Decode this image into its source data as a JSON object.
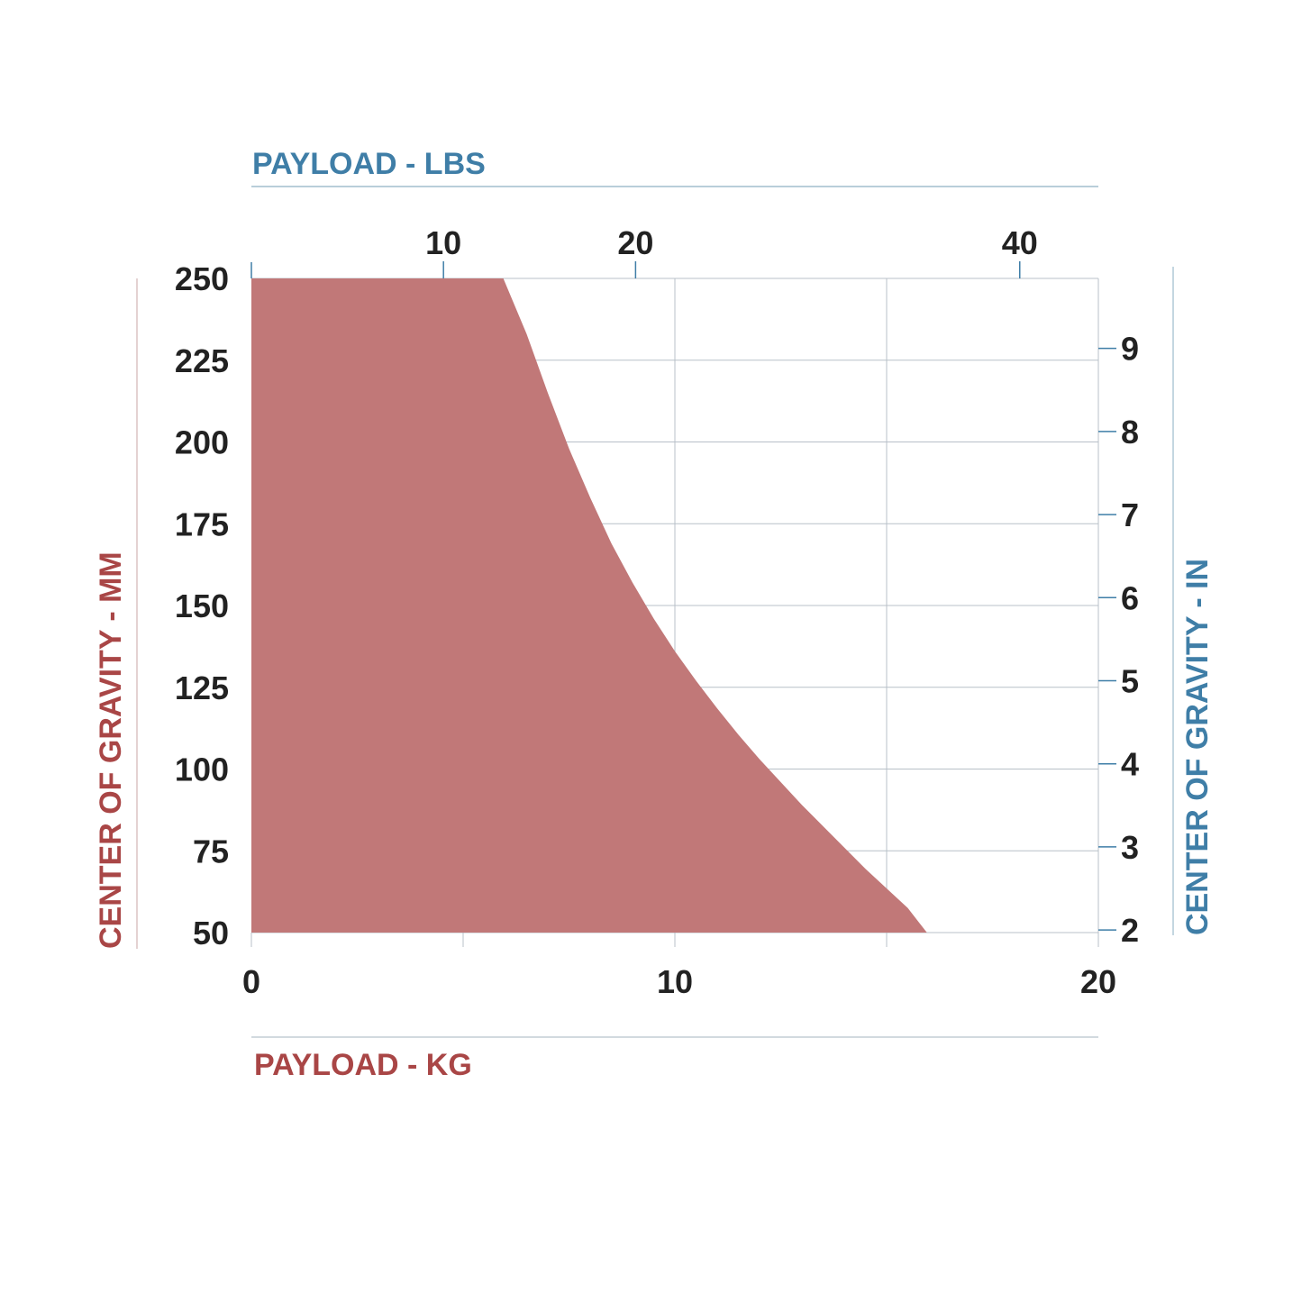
{
  "chart_data": {
    "type": "area",
    "title": "",
    "xlabel": "PAYLOAD - KG",
    "x2label": "PAYLOAD - LBS",
    "ylabel": "CENTER OF GRAVITY - MM",
    "y2label": "CENTER OF GRAVITY - IN",
    "xlim": [
      0,
      20
    ],
    "ylim": [
      50,
      250
    ],
    "x_ticks": [
      0,
      10,
      20
    ],
    "x_gridlines": [
      5,
      10,
      15
    ],
    "y_ticks": [
      50,
      75,
      100,
      125,
      150,
      175,
      200,
      225,
      250
    ],
    "x2_ticks": [
      10,
      20,
      40
    ],
    "y2_ticks": [
      2,
      3,
      4,
      5,
      6,
      7,
      8,
      9
    ],
    "grid": true,
    "series": [
      {
        "x": [
          0,
          5.95,
          6.5,
          7.0,
          7.5,
          8.0,
          8.5,
          9.0,
          9.5,
          10.0,
          10.5,
          11.0,
          11.5,
          12.0,
          12.5,
          13.0,
          13.5,
          14.0,
          14.5,
          15.0,
          15.5,
          15.95,
          0
        ],
        "y": [
          250,
          250,
          233,
          215,
          198,
          183,
          169,
          157,
          146,
          136,
          127,
          118.5,
          110.5,
          103,
          96,
          89,
          82.5,
          76,
          69.5,
          63.5,
          57.5,
          50,
          50
        ]
      }
    ],
    "colors": {
      "fill": "#c17878",
      "metric": "#a94646",
      "imperial": "#3f7ea7",
      "grid": "#b8c0c8",
      "tick_text": "#222222"
    }
  }
}
